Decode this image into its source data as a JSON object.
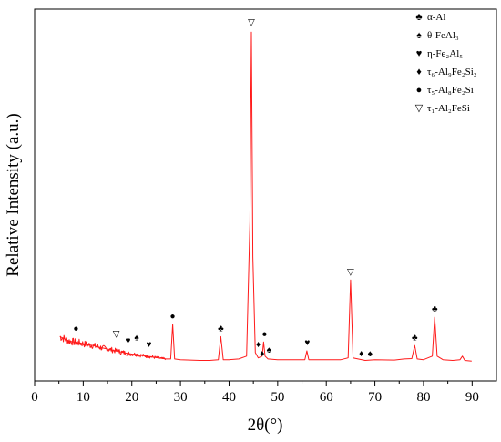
{
  "chart_data": {
    "type": "line",
    "title": "",
    "xlabel": "2θ(°)",
    "ylabel": "Relative Intensity (a.u.)",
    "xlim": [
      0,
      95
    ],
    "ylim": [
      -0.05,
      1.0
    ],
    "x_ticks": [
      0,
      10,
      20,
      30,
      40,
      50,
      60,
      70,
      80,
      90
    ],
    "x_tick_labels": [
      "0",
      "10",
      "20",
      "30",
      "40",
      "50",
      "60",
      "70",
      "80",
      "90"
    ],
    "y_ticks_labeled": false,
    "grid": false,
    "line_color": "#ff1a1a",
    "legend_position": "top-right",
    "legend": [
      {
        "symbol": "♣",
        "label": "α-Al"
      },
      {
        "symbol": "♠",
        "label": "θ-FeAl₃"
      },
      {
        "symbol": "♥",
        "label": "η-Fe₂Al₅"
      },
      {
        "symbol": "♦",
        "label": "τ₆-Al₉Fe₂Si₂"
      },
      {
        "symbol": "●",
        "label": "τ₅-Al₈Fe₂Si"
      },
      {
        "symbol": "▽",
        "label": "τ₁-Al₂FeSi"
      }
    ],
    "series": [
      {
        "points": [
          [
            5.2,
            0.075
          ],
          [
            6,
            0.07
          ],
          [
            7,
            0.063
          ],
          [
            8,
            0.06
          ],
          [
            9,
            0.058
          ],
          [
            10,
            0.055
          ],
          [
            11,
            0.052
          ],
          [
            12,
            0.05
          ],
          [
            13,
            0.046
          ],
          [
            14,
            0.043
          ],
          [
            15,
            0.04
          ],
          [
            16,
            0.037
          ],
          [
            17,
            0.034
          ],
          [
            18,
            0.031
          ],
          [
            19,
            0.028
          ],
          [
            20,
            0.026
          ],
          [
            21,
            0.025
          ],
          [
            22,
            0.022
          ],
          [
            23,
            0.02
          ],
          [
            24,
            0.018
          ],
          [
            25,
            0.016
          ],
          [
            26,
            0.014
          ],
          [
            27,
            0.012
          ],
          [
            28,
            0.012
          ],
          [
            28.4,
            0.11
          ],
          [
            28.8,
            0.012
          ],
          [
            30,
            0.01
          ],
          [
            32,
            0.009
          ],
          [
            34,
            0.008
          ],
          [
            36,
            0.008
          ],
          [
            37.8,
            0.01
          ],
          [
            38.3,
            0.075
          ],
          [
            38.8,
            0.01
          ],
          [
            40,
            0.01
          ],
          [
            42,
            0.012
          ],
          [
            43.6,
            0.02
          ],
          [
            44.3,
            0.4
          ],
          [
            44.6,
            0.935
          ],
          [
            44.9,
            0.3
          ],
          [
            45.4,
            0.03
          ],
          [
            46,
            0.015
          ],
          [
            46.8,
            0.02
          ],
          [
            47.1,
            0.06
          ],
          [
            47.4,
            0.02
          ],
          [
            48,
            0.012
          ],
          [
            50,
            0.01
          ],
          [
            52,
            0.01
          ],
          [
            55.6,
            0.01
          ],
          [
            56,
            0.035
          ],
          [
            56.4,
            0.01
          ],
          [
            60,
            0.01
          ],
          [
            63,
            0.01
          ],
          [
            64.5,
            0.015
          ],
          [
            65,
            0.235
          ],
          [
            65.5,
            0.015
          ],
          [
            68,
            0.008
          ],
          [
            70,
            0.01
          ],
          [
            74,
            0.009
          ],
          [
            76,
            0.012
          ],
          [
            77.6,
            0.013
          ],
          [
            78.2,
            0.05
          ],
          [
            78.7,
            0.012
          ],
          [
            80,
            0.01
          ],
          [
            81.8,
            0.02
          ],
          [
            82.3,
            0.13
          ],
          [
            82.8,
            0.02
          ],
          [
            84,
            0.01
          ],
          [
            86,
            0.008
          ],
          [
            87.5,
            0.01
          ],
          [
            88,
            0.02
          ],
          [
            88.5,
            0.008
          ],
          [
            89.9,
            0.006
          ]
        ]
      }
    ],
    "peak_annotations": [
      {
        "x": 8.5,
        "y": 0.09,
        "symbol": "●"
      },
      {
        "x": 16.8,
        "y": 0.075,
        "symbol": "▽"
      },
      {
        "x": 19.2,
        "y": 0.055,
        "symbol": "♥"
      },
      {
        "x": 21,
        "y": 0.065,
        "symbol": "♠"
      },
      {
        "x": 23.5,
        "y": 0.045,
        "symbol": "♥"
      },
      {
        "x": 28.4,
        "y": 0.125,
        "symbol": "●"
      },
      {
        "x": 38.3,
        "y": 0.09,
        "symbol": "♣"
      },
      {
        "x": 44.6,
        "y": 0.955,
        "symbol": "▽"
      },
      {
        "x": 46,
        "y": 0.045,
        "symbol": "♦"
      },
      {
        "x": 46.8,
        "y": 0.02,
        "symbol": "♦"
      },
      {
        "x": 47.3,
        "y": 0.075,
        "symbol": "●"
      },
      {
        "x": 48.2,
        "y": 0.03,
        "symbol": "♠"
      },
      {
        "x": 56.1,
        "y": 0.05,
        "symbol": "♥"
      },
      {
        "x": 65,
        "y": 0.25,
        "symbol": "▽"
      },
      {
        "x": 67.2,
        "y": 0.02,
        "symbol": "♦"
      },
      {
        "x": 69,
        "y": 0.02,
        "symbol": "♠"
      },
      {
        "x": 78.2,
        "y": 0.065,
        "symbol": "♣"
      },
      {
        "x": 82.3,
        "y": 0.145,
        "symbol": "♣"
      }
    ]
  }
}
